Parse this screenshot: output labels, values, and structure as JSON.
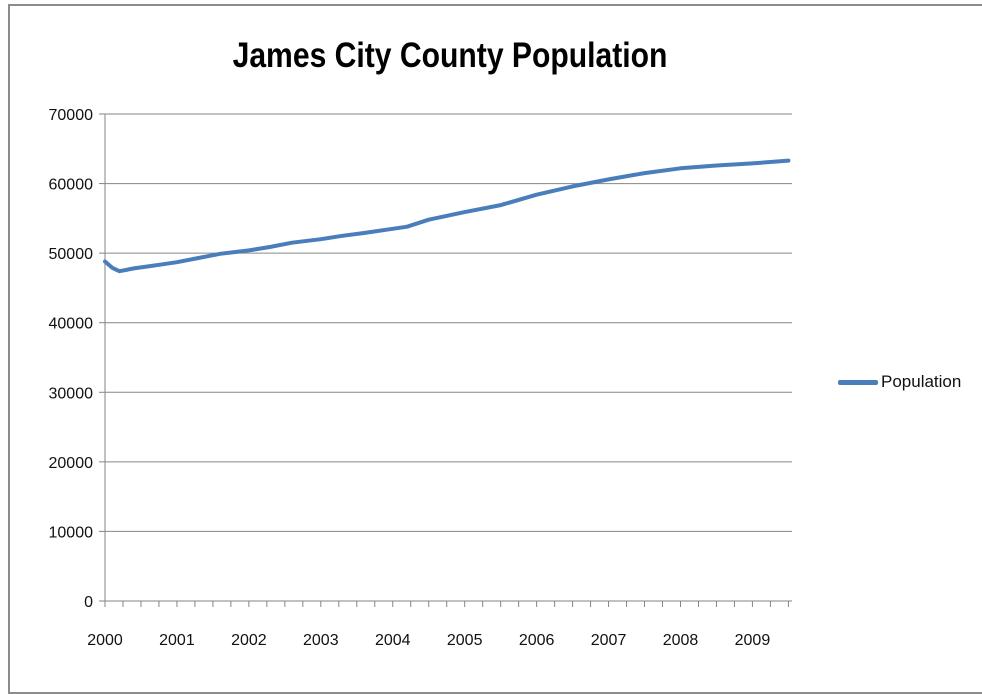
{
  "chart_data": {
    "type": "line",
    "title": "James City County Population",
    "xlabel": "",
    "ylabel": "",
    "xlim": [
      2000,
      2009.55
    ],
    "ylim": [
      0,
      70000
    ],
    "yticks": [
      0,
      10000,
      20000,
      30000,
      40000,
      50000,
      60000,
      70000
    ],
    "ytick_labels": [
      "0",
      "10000",
      "20000",
      "30000",
      "40000",
      "50000",
      "60000",
      "70000"
    ],
    "xticks": [
      2000,
      2001,
      2002,
      2003,
      2004,
      2005,
      2006,
      2007,
      2008,
      2009
    ],
    "xtick_labels": [
      "2000",
      "2001",
      "2002",
      "2003",
      "2004",
      "2005",
      "2006",
      "2007",
      "2008",
      "2009"
    ],
    "grid": "horizontal",
    "legend": "right",
    "series": [
      {
        "name": "Population",
        "color": "#4a7ebb",
        "x": [
          2000.0,
          2000.1,
          2000.2,
          2000.4,
          2000.6,
          2000.8,
          2001.0,
          2001.3,
          2001.6,
          2002.0,
          2002.3,
          2002.6,
          2003.0,
          2003.3,
          2003.6,
          2004.0,
          2004.2,
          2004.5,
          2005.0,
          2005.5,
          2006.0,
          2006.5,
          2007.0,
          2007.5,
          2008.0,
          2008.5,
          2009.0,
          2009.5
        ],
        "values": [
          48800,
          47900,
          47400,
          47800,
          48100,
          48400,
          48700,
          49300,
          49900,
          50400,
          50900,
          51500,
          52000,
          52500,
          52900,
          53500,
          53800,
          54800,
          55900,
          56900,
          58400,
          59600,
          60600,
          61500,
          62200,
          62600,
          62900,
          63300
        ]
      }
    ]
  }
}
